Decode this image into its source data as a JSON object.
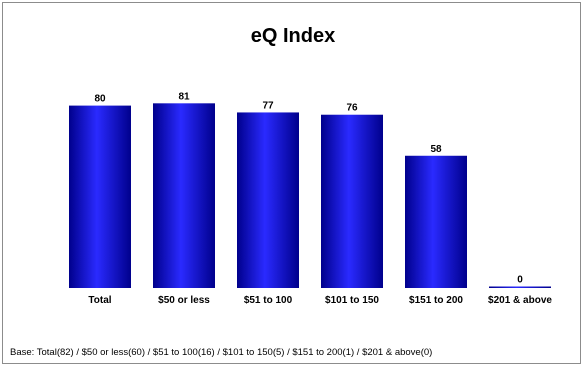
{
  "chart_data": {
    "type": "bar",
    "title": "eQ Index",
    "categories": [
      "Total",
      "$50 or less",
      "$51 to 100",
      "$101 to 150",
      "$151 to 200",
      "$201 & above"
    ],
    "values": [
      80,
      81,
      77,
      76,
      58,
      0
    ],
    "data_labels": [
      "80",
      "81",
      "77",
      "76",
      "58",
      "0"
    ],
    "ylim": [
      0,
      100
    ],
    "grid": false,
    "legend": "none",
    "bar_color": "#0000ee",
    "bar_color_light": "#2a2aff",
    "bar_color_dark": "#00008c"
  },
  "footnote": "Base: Total(82) / $50 or less(60) / $51 to 100(16) / $101 to 150(5) / $151 to 200(1) / $201 & above(0)"
}
